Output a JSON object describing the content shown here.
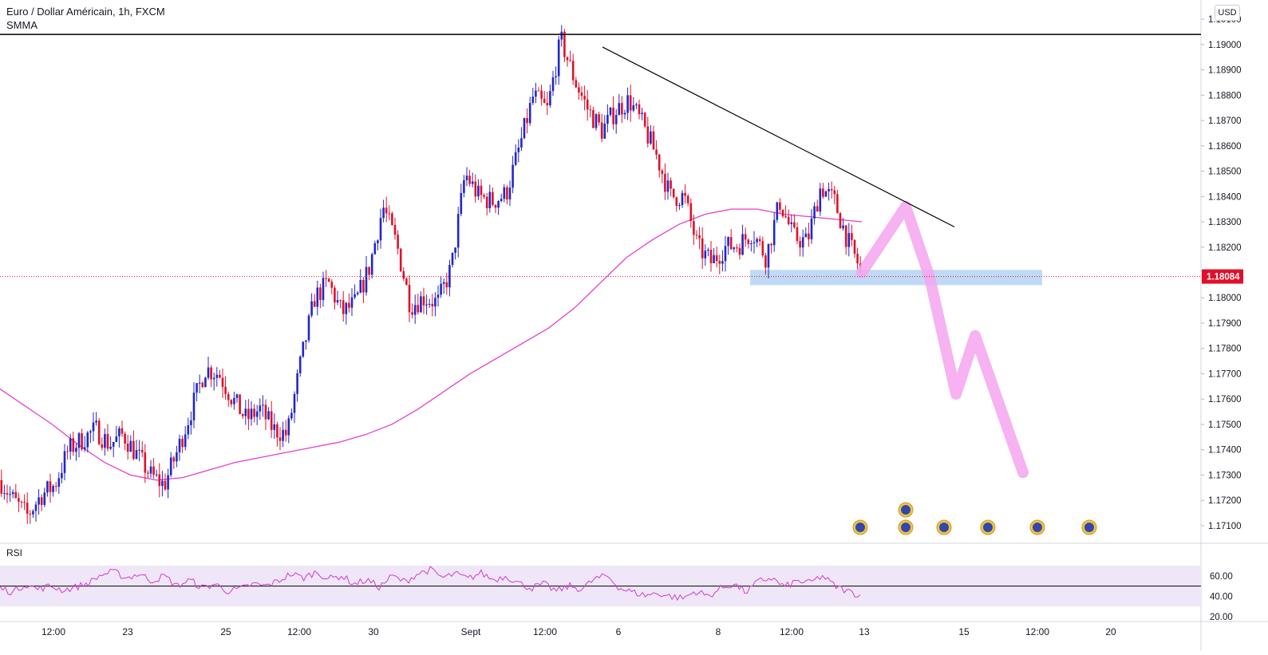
{
  "header": {
    "symbol_line": "Euro / Dollar Américain, 1h, FXCM",
    "indicator": "SMMA",
    "currency": "USD"
  },
  "rsi_panel": {
    "label": "RSI",
    "levels": [
      "60.00",
      "40.00",
      "20.00"
    ]
  },
  "colors": {
    "up": "#2226c8",
    "down": "#e0102a",
    "smma": "#e33fd3",
    "rsi": "#d43ad8",
    "rsi_band": "#efe7f7",
    "forecast": "#f5a5ee",
    "support_zone": "#a9cdf3",
    "price_line": "#e0102a",
    "resistance": "#000000",
    "trendline": "#000000"
  },
  "chart_data": {
    "type": "candlestick",
    "title": "Euro / Dollar Américain, 1h, FXCM",
    "y_axis": {
      "ticks": [
        1.191,
        1.19,
        1.189,
        1.188,
        1.187,
        1.186,
        1.185,
        1.184,
        1.183,
        1.182,
        1.18,
        1.179,
        1.178,
        1.177,
        1.176,
        1.175,
        1.174,
        1.173,
        1.172,
        1.171
      ],
      "tick_labels": [
        "1.19100",
        "1.19000",
        "1.18900",
        "1.18800",
        "1.18700",
        "1.18600",
        "1.18500",
        "1.18400",
        "1.18300",
        "1.18200",
        "1.18000",
        "1.17900",
        "1.17800",
        "1.17700",
        "1.17600",
        "1.17500",
        "1.17400",
        "1.17300",
        "1.17200",
        "1.17100"
      ],
      "range": [
        1.1704,
        1.1916
      ]
    },
    "x_axis": {
      "tick_labels": [
        "12:00",
        "23",
        "25",
        "12:00",
        "30",
        "Sept",
        "12:00",
        "6",
        "8",
        "12:00",
        "13",
        "15",
        "12:00",
        "20"
      ]
    },
    "last_price": 1.18084,
    "last_price_label": "1.18084",
    "resistance_level": 1.1904,
    "trendline": {
      "from": 1.1899,
      "to": 1.1828
    },
    "support_zone": [
      1.1805,
      1.1811
    ],
    "price_path": [
      1.1728,
      1.172,
      1.1714,
      1.1722,
      1.1726,
      1.174,
      1.1744,
      1.1748,
      1.1742,
      1.1746,
      1.1738,
      1.173,
      1.1726,
      1.174,
      1.1756,
      1.1772,
      1.177,
      1.176,
      1.1752,
      1.1756,
      1.1748,
      1.1746,
      1.1775,
      1.18,
      1.1806,
      1.1794,
      1.1798,
      1.1812,
      1.1836,
      1.1821,
      1.1797,
      1.18,
      1.1798,
      1.1812,
      1.1849,
      1.184,
      1.1838,
      1.1841,
      1.186,
      1.188,
      1.1874,
      1.1902,
      1.1886,
      1.1874,
      1.1866,
      1.1874,
      1.1878,
      1.1868,
      1.1856,
      1.184,
      1.184,
      1.182,
      1.1814,
      1.182,
      1.1821,
      1.1826,
      1.1816,
      1.1838,
      1.1824,
      1.1822,
      1.1844,
      1.1838,
      1.1822,
      1.181
    ],
    "smma_path": [
      1.1764,
      1.1757,
      1.175,
      1.1742,
      1.1735,
      1.173,
      1.1728,
      1.1729,
      1.1732,
      1.1735,
      1.1737,
      1.1739,
      1.1741,
      1.1743,
      1.1746,
      1.175,
      1.1756,
      1.1763,
      1.177,
      1.1776,
      1.1782,
      1.1788,
      1.1796,
      1.1806,
      1.1816,
      1.1823,
      1.1829,
      1.1833,
      1.1835,
      1.1835,
      1.1833,
      1.1832,
      1.1831,
      1.183
    ],
    "forecast_path": [
      1.181,
      1.1836,
      1.1808,
      1.1762,
      1.1785,
      1.1731
    ],
    "rsi_path": [
      48,
      44,
      52,
      47,
      50,
      46,
      49,
      53,
      61,
      64,
      58,
      62,
      55,
      60,
      50,
      56,
      48,
      52,
      45,
      47,
      52,
      50,
      55,
      62,
      58,
      64,
      57,
      60,
      52,
      56,
      49,
      60,
      54,
      62,
      66,
      58,
      62,
      57,
      63,
      56,
      60,
      53,
      48,
      52,
      45,
      50,
      47,
      57,
      60,
      48,
      44,
      41,
      43,
      40,
      38,
      45,
      40,
      48,
      52,
      44,
      55,
      58,
      49,
      55,
      53,
      60,
      50,
      45,
      41
    ]
  }
}
